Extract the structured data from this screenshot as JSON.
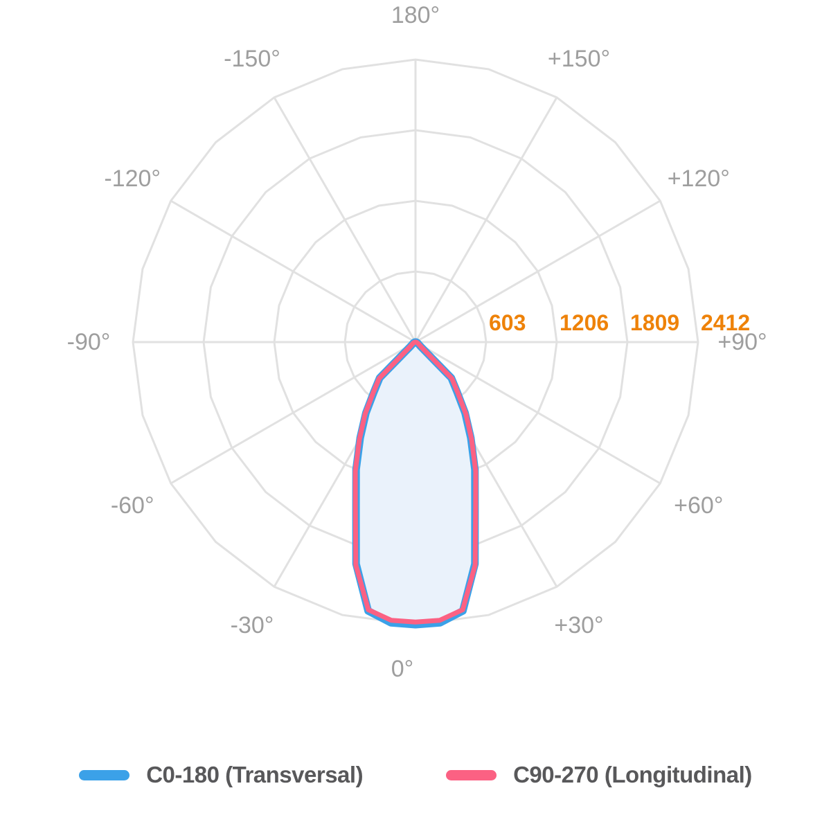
{
  "chart_data": {
    "type": "polar",
    "title": "",
    "description": "Photometric polar light-distribution curve (luminous intensity in cd)",
    "radial_axis": {
      "ticks": [
        603,
        1206,
        1809,
        2412
      ],
      "max": 2412,
      "tick_color": "#EE8209"
    },
    "angle_axis": {
      "spoke_step_deg": 30,
      "label_color": "#9E9E9E",
      "labels": [
        {
          "deg": 0,
          "label": "0°",
          "dx": -19
        },
        {
          "deg": 30,
          "label": "+30°"
        },
        {
          "deg": 60,
          "label": "+60°"
        },
        {
          "deg": 90,
          "label": "+90°"
        },
        {
          "deg": 120,
          "label": "+120°"
        },
        {
          "deg": 150,
          "label": "+150°"
        },
        {
          "deg": 180,
          "label": "180°"
        },
        {
          "deg": -150,
          "label": "-150°"
        },
        {
          "deg": -120,
          "label": "-120°"
        },
        {
          "deg": -90,
          "label": "-90°"
        },
        {
          "deg": -60,
          "label": "-60°"
        },
        {
          "deg": -30,
          "label": "-30°"
        }
      ]
    },
    "grid": {
      "color": "#E1E1E1",
      "line_width": 3,
      "ring_vertex_step_deg": 15
    },
    "series": [
      {
        "name": "C0-180 (Transversal)",
        "color": "#3BA1E8",
        "fill": "#EAF2FB",
        "stroke_width": 11,
        "mirror_symmetric": true,
        "angles_deg": [
          0,
          5,
          10,
          15,
          20,
          25,
          30,
          35,
          40,
          45,
          50,
          55,
          60,
          65,
          70,
          75,
          80,
          85,
          90
        ],
        "values_cd": [
          2412,
          2405,
          2330,
          1960,
          1485,
          1200,
          945,
          738,
          549,
          432,
          55,
          35,
          25,
          20,
          15,
          12,
          8,
          4,
          0
        ]
      },
      {
        "name": "C90-270 (Longitudinal)",
        "color": "#FB6183",
        "fill": "none",
        "stroke_width": 7,
        "mirror_symmetric": true,
        "angles_deg": [
          0,
          5,
          10,
          15,
          20,
          25,
          30,
          35,
          40,
          45,
          50,
          55,
          60,
          65,
          70,
          75,
          80,
          85,
          90
        ],
        "values_cd": [
          2390,
          2384,
          2320,
          1970,
          1500,
          1215,
          958,
          750,
          560,
          440,
          60,
          38,
          28,
          22,
          17,
          13,
          9,
          5,
          0
        ]
      }
    ],
    "legend_position": "bottom"
  },
  "legend": {
    "items": [
      {
        "label": "C0-180 (Transversal)",
        "color": "#3BA1E8"
      },
      {
        "label": "C90-270 (Longitudinal)",
        "color": "#FB6183"
      }
    ],
    "text_color": "#58585A"
  }
}
